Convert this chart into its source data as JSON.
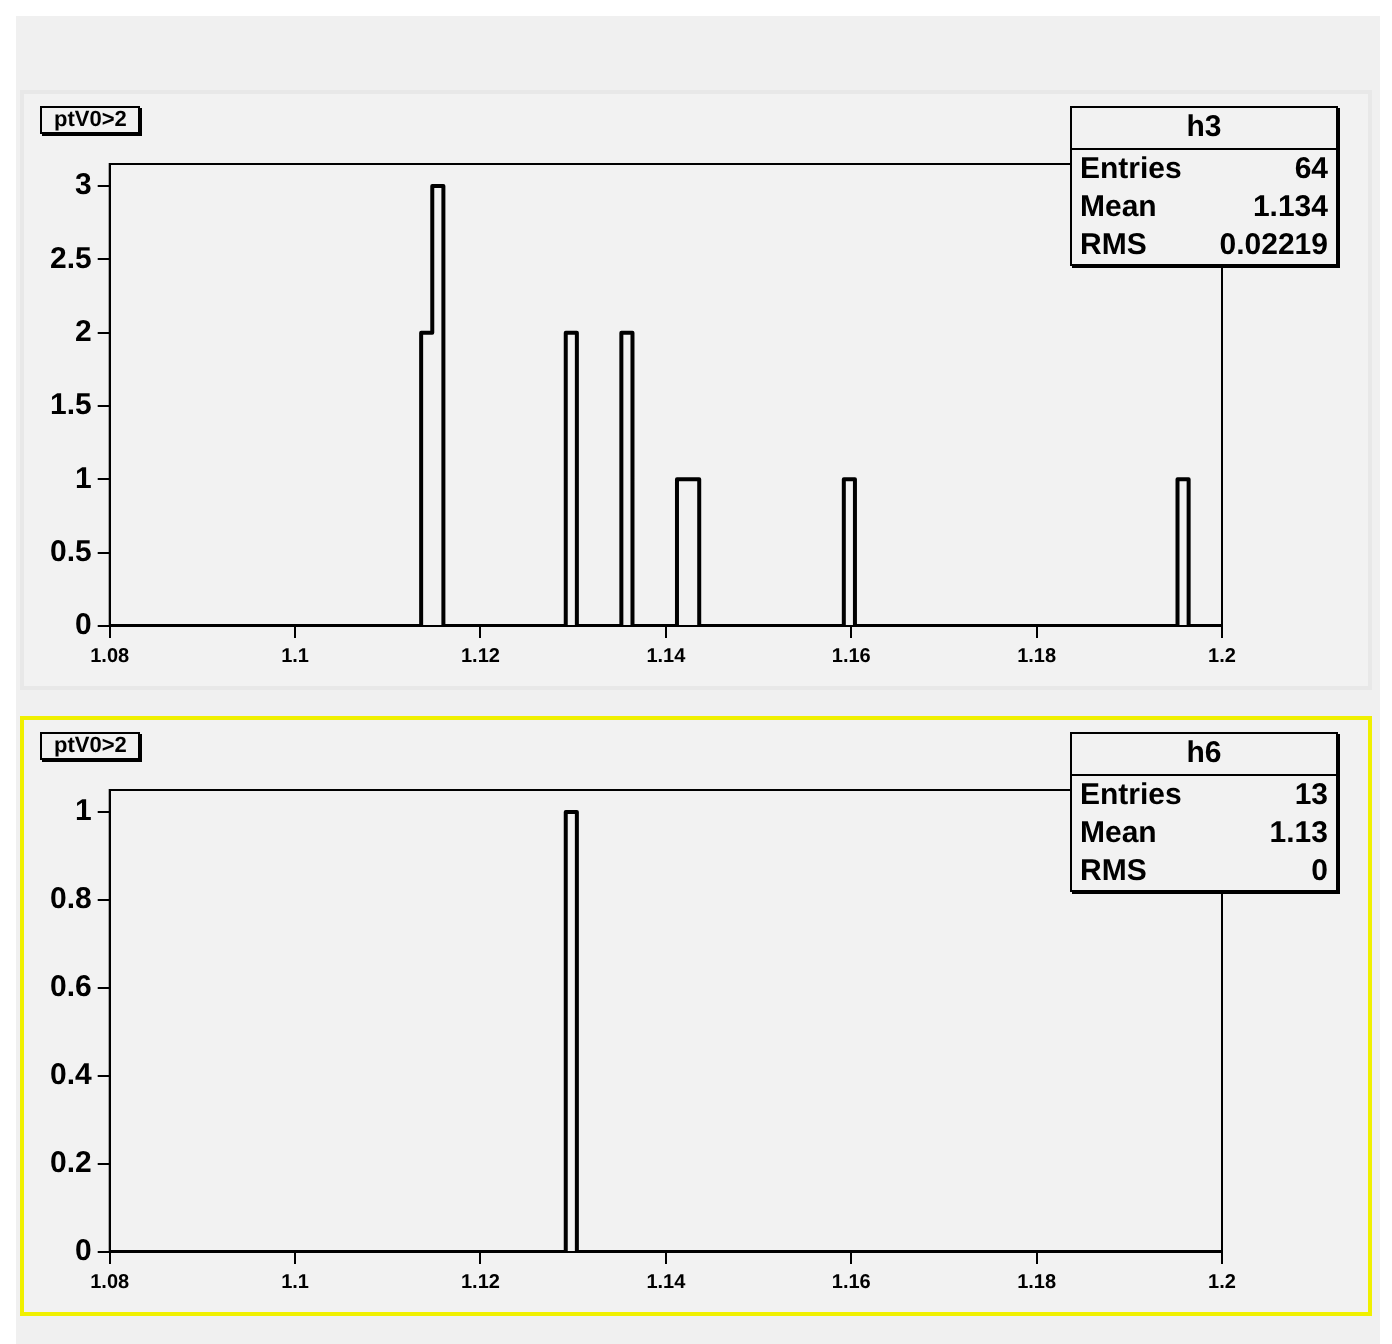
{
  "chart_data": [
    {
      "type": "histogram",
      "title": "ptV0>2",
      "bins": [
        1.08,
        1.1136,
        1.1148,
        1.116,
        1.1292,
        1.1304,
        1.1352,
        1.1364,
        1.1412,
        1.1424,
        1.1436,
        1.1592,
        1.1604,
        1.1952,
        1.1964,
        1.2
      ],
      "values": [
        0,
        2,
        3,
        0,
        2,
        0,
        2,
        0,
        1,
        1,
        0,
        1,
        0,
        1,
        0
      ],
      "color": "#000000",
      "xlim": [
        1.08,
        1.2
      ],
      "xticks": [
        1.08,
        1.1,
        1.12,
        1.14,
        1.16,
        1.18,
        1.2
      ],
      "ylim": [
        0,
        3.15
      ],
      "yticks": [
        0,
        0.5,
        1,
        1.5,
        2,
        2.5,
        3
      ],
      "grid": false,
      "annotations": [
        "h3",
        "Entries",
        "64",
        "Mean",
        "1.134",
        "RMS",
        "0.02219"
      ]
    },
    {
      "type": "histogram",
      "title": "ptV0>2",
      "bins": [
        1.08,
        1.1292,
        1.1304,
        1.2
      ],
      "values": [
        0,
        1,
        0
      ],
      "color": "#000000",
      "xlim": [
        1.08,
        1.2
      ],
      "xticks": [
        1.08,
        1.1,
        1.12,
        1.14,
        1.16,
        1.18,
        1.2
      ],
      "ylim": [
        0,
        1.05
      ],
      "yticks": [
        0,
        0.2,
        0.4,
        0.6,
        0.8,
        1
      ],
      "grid": false,
      "annotations": [
        "h6",
        "Entries",
        "13",
        "Mean",
        "1.13",
        "RMS",
        "0"
      ]
    }
  ]
}
